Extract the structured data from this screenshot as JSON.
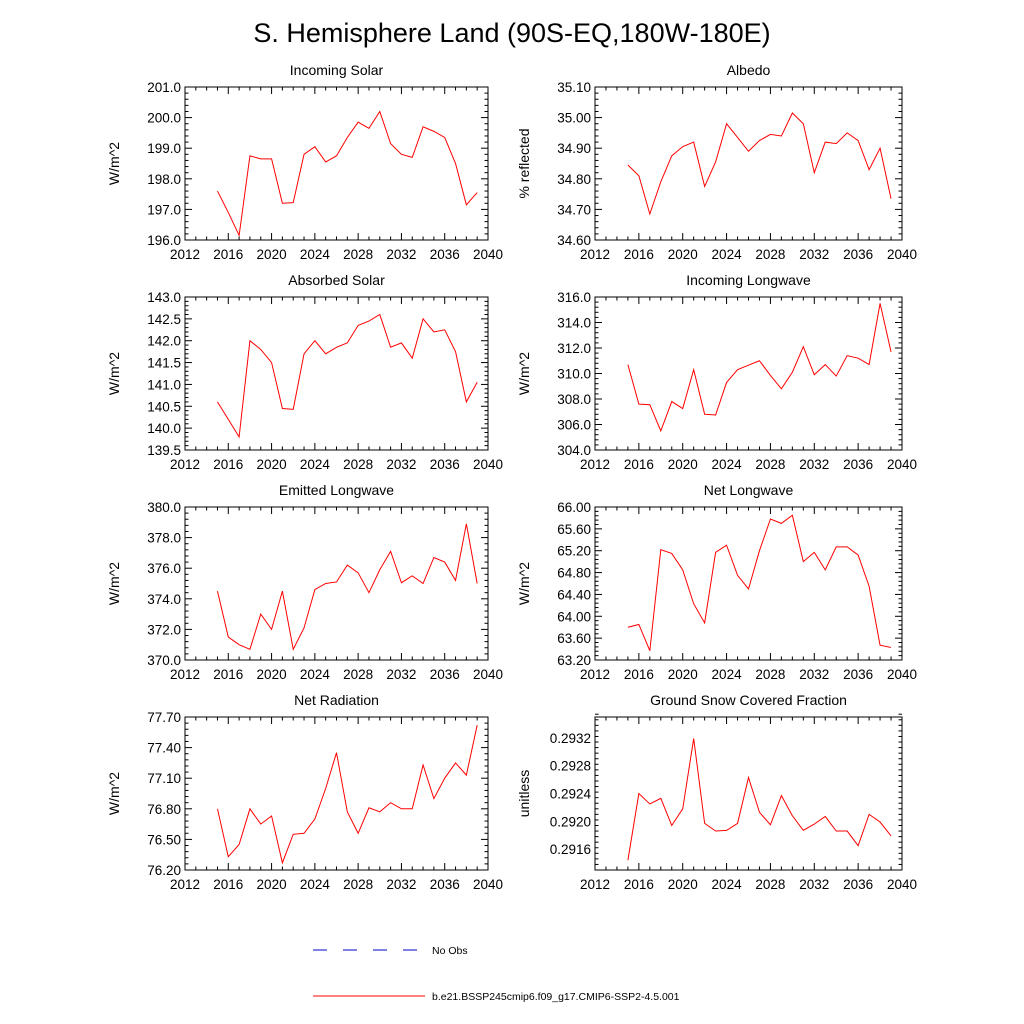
{
  "title": "S. Hemisphere Land (90S-EQ,180W-180E)",
  "colors": {
    "model_line": "#ff0000",
    "obs_line": "#0000cd"
  },
  "legend": {
    "obs_label": "No Obs",
    "model_label": "b.e21.BSSP245cmip6.f09_g17.CMIP6-SSP2-4.5.001"
  },
  "chart_data": [
    {
      "type": "line",
      "title": "Incoming Solar",
      "ylabel": "W/m^2",
      "xlim": [
        2012,
        2040
      ],
      "xticks": [
        2012,
        2016,
        2020,
        2024,
        2028,
        2032,
        2036,
        2040
      ],
      "ylim": [
        196.0,
        201.0
      ],
      "yticks": [
        "196.0",
        "197.0",
        "198.0",
        "199.0",
        "200.0",
        "201.0"
      ],
      "x": [
        2015,
        2016,
        2017,
        2018,
        2019,
        2020,
        2021,
        2022,
        2023,
        2024,
        2025,
        2026,
        2027,
        2028,
        2029,
        2030,
        2031,
        2032,
        2033,
        2034,
        2035,
        2036,
        2037,
        2038,
        2039
      ],
      "series": [
        {
          "name": "b.e21.BSSP245cmip6.f09_g17.CMIP6-SSP2-4.5.001",
          "values": [
            197.6,
            196.9,
            196.15,
            198.75,
            198.65,
            198.65,
            197.2,
            197.22,
            198.8,
            199.05,
            198.55,
            198.75,
            199.35,
            199.85,
            199.65,
            200.2,
            199.15,
            198.8,
            198.7,
            199.7,
            199.55,
            199.35,
            198.5,
            197.15,
            197.55
          ]
        }
      ]
    },
    {
      "type": "line",
      "title": "Albedo",
      "ylabel": "% reflected",
      "xlim": [
        2012,
        2040
      ],
      "xticks": [
        2012,
        2016,
        2020,
        2024,
        2028,
        2032,
        2036,
        2040
      ],
      "ylim": [
        34.6,
        35.1
      ],
      "yticks": [
        "34.60",
        "34.70",
        "34.80",
        "34.90",
        "35.00",
        "35.10"
      ],
      "x": [
        2015,
        2016,
        2017,
        2018,
        2019,
        2020,
        2021,
        2022,
        2023,
        2024,
        2025,
        2026,
        2027,
        2028,
        2029,
        2030,
        2031,
        2032,
        2033,
        2034,
        2035,
        2036,
        2037,
        2038,
        2039
      ],
      "series": [
        {
          "name": "b.e21.BSSP245cmip6.f09_g17.CMIP6-SSP2-4.5.001",
          "values": [
            34.845,
            34.81,
            34.685,
            34.79,
            34.875,
            34.905,
            34.92,
            34.775,
            34.855,
            34.98,
            34.935,
            34.89,
            34.925,
            34.945,
            34.94,
            35.015,
            34.98,
            34.82,
            34.92,
            34.915,
            34.95,
            34.925,
            34.83,
            34.9,
            34.735
          ]
        }
      ]
    },
    {
      "type": "line",
      "title": "Absorbed Solar",
      "ylabel": "W/m^2",
      "xlim": [
        2012,
        2040
      ],
      "xticks": [
        2012,
        2016,
        2020,
        2024,
        2028,
        2032,
        2036,
        2040
      ],
      "ylim": [
        139.5,
        143.0
      ],
      "yticks": [
        "139.5",
        "140.0",
        "140.5",
        "141.0",
        "141.5",
        "142.0",
        "142.5",
        "143.0"
      ],
      "x": [
        2015,
        2016,
        2017,
        2018,
        2019,
        2020,
        2021,
        2022,
        2023,
        2024,
        2025,
        2026,
        2027,
        2028,
        2029,
        2030,
        2031,
        2032,
        2033,
        2034,
        2035,
        2036,
        2037,
        2038,
        2039
      ],
      "series": [
        {
          "name": "b.e21.BSSP245cmip6.f09_g17.CMIP6-SSP2-4.5.001",
          "values": [
            140.6,
            140.2,
            139.8,
            142.0,
            141.8,
            141.5,
            140.45,
            140.43,
            141.7,
            142.0,
            141.7,
            141.85,
            141.95,
            142.35,
            142.45,
            142.6,
            141.85,
            141.95,
            141.6,
            142.5,
            142.2,
            142.25,
            141.75,
            140.6,
            141.05
          ]
        }
      ]
    },
    {
      "type": "line",
      "title": "Incoming Longwave",
      "ylabel": "W/m^2",
      "xlim": [
        2012,
        2040
      ],
      "xticks": [
        2012,
        2016,
        2020,
        2024,
        2028,
        2032,
        2036,
        2040
      ],
      "ylim": [
        304.0,
        316.0
      ],
      "yticks": [
        "304.0",
        "306.0",
        "308.0",
        "310.0",
        "312.0",
        "314.0",
        "316.0"
      ],
      "x": [
        2015,
        2016,
        2017,
        2018,
        2019,
        2020,
        2021,
        2022,
        2023,
        2024,
        2025,
        2026,
        2027,
        2028,
        2029,
        2030,
        2031,
        2032,
        2033,
        2034,
        2035,
        2036,
        2037,
        2038,
        2039
      ],
      "series": [
        {
          "name": "b.e21.BSSP245cmip6.f09_g17.CMIP6-SSP2-4.5.001",
          "values": [
            310.7,
            307.6,
            307.55,
            305.5,
            307.8,
            307.25,
            310.3,
            306.8,
            306.75,
            309.3,
            310.3,
            310.65,
            311.0,
            309.85,
            308.8,
            310.1,
            312.1,
            309.9,
            310.7,
            309.8,
            311.4,
            311.2,
            310.7,
            315.5,
            311.7
          ]
        }
      ]
    },
    {
      "type": "line",
      "title": "Emitted Longwave",
      "ylabel": "W/m^2",
      "xlim": [
        2012,
        2040
      ],
      "xticks": [
        2012,
        2016,
        2020,
        2024,
        2028,
        2032,
        2036,
        2040
      ],
      "ylim": [
        370.0,
        380.0
      ],
      "yticks": [
        "370.0",
        "372.0",
        "374.0",
        "376.0",
        "378.0",
        "380.0"
      ],
      "x": [
        2015,
        2016,
        2017,
        2018,
        2019,
        2020,
        2021,
        2022,
        2023,
        2024,
        2025,
        2026,
        2027,
        2028,
        2029,
        2030,
        2031,
        2032,
        2033,
        2034,
        2035,
        2036,
        2037,
        2038,
        2039
      ],
      "series": [
        {
          "name": "b.e21.BSSP245cmip6.f09_g17.CMIP6-SSP2-4.5.001",
          "values": [
            374.5,
            371.5,
            371.0,
            370.7,
            373.0,
            372.0,
            374.5,
            370.7,
            372.1,
            374.6,
            375.0,
            375.1,
            376.2,
            375.7,
            374.4,
            375.9,
            377.1,
            375.05,
            375.5,
            375.0,
            376.7,
            376.4,
            375.2,
            378.9,
            375.0
          ]
        }
      ]
    },
    {
      "type": "line",
      "title": "Net Longwave",
      "ylabel": "W/m^2",
      "xlim": [
        2012,
        2040
      ],
      "xticks": [
        2012,
        2016,
        2020,
        2024,
        2028,
        2032,
        2036,
        2040
      ],
      "ylim": [
        63.2,
        66.0
      ],
      "yticks": [
        "63.20",
        "63.60",
        "64.00",
        "64.40",
        "64.80",
        "65.20",
        "65.60",
        "66.00"
      ],
      "x": [
        2015,
        2016,
        2017,
        2018,
        2019,
        2020,
        2021,
        2022,
        2023,
        2024,
        2025,
        2026,
        2027,
        2028,
        2029,
        2030,
        2031,
        2032,
        2033,
        2034,
        2035,
        2036,
        2037,
        2038,
        2039
      ],
      "series": [
        {
          "name": "b.e21.BSSP245cmip6.f09_g17.CMIP6-SSP2-4.5.001",
          "values": [
            63.8,
            63.85,
            63.37,
            65.22,
            65.15,
            64.85,
            64.23,
            63.88,
            65.17,
            65.3,
            64.75,
            64.5,
            65.2,
            65.78,
            65.7,
            65.85,
            65.0,
            65.17,
            64.85,
            65.27,
            65.27,
            65.12,
            64.55,
            63.47,
            63.43
          ]
        }
      ]
    },
    {
      "type": "line",
      "title": "Net Radiation",
      "ylabel": "W/m^2",
      "xlim": [
        2012,
        2040
      ],
      "xticks": [
        2012,
        2016,
        2020,
        2024,
        2028,
        2032,
        2036,
        2040
      ],
      "ylim": [
        76.2,
        77.7
      ],
      "yticks": [
        "76.20",
        "76.50",
        "76.80",
        "77.10",
        "77.40",
        "77.70"
      ],
      "x": [
        2015,
        2016,
        2017,
        2018,
        2019,
        2020,
        2021,
        2022,
        2023,
        2024,
        2025,
        2026,
        2027,
        2028,
        2029,
        2030,
        2031,
        2032,
        2033,
        2034,
        2035,
        2036,
        2037,
        2038,
        2039
      ],
      "series": [
        {
          "name": "b.e21.BSSP245cmip6.f09_g17.CMIP6-SSP2-4.5.001",
          "values": [
            76.8,
            76.33,
            76.45,
            76.8,
            76.65,
            76.73,
            76.27,
            76.55,
            76.56,
            76.7,
            77.0,
            77.35,
            76.77,
            76.56,
            76.81,
            76.77,
            76.86,
            76.8,
            76.8,
            77.23,
            76.9,
            77.1,
            77.25,
            77.13,
            77.62
          ]
        }
      ]
    },
    {
      "type": "line",
      "title": "Ground Snow Covered Fraction",
      "ylabel": "unitless",
      "xlim": [
        2012,
        2040
      ],
      "xticks": [
        2012,
        2016,
        2020,
        2024,
        2028,
        2032,
        2036,
        2040
      ],
      "ylim": [
        0.2913,
        0.2935
      ],
      "yticks": [
        "0.2916",
        "0.2920",
        "0.2924",
        "0.2928",
        "0.2932"
      ],
      "x": [
        2015,
        2016,
        2017,
        2018,
        2019,
        2020,
        2021,
        2022,
        2023,
        2024,
        2025,
        2026,
        2027,
        2028,
        2029,
        2030,
        2031,
        2032,
        2033,
        2034,
        2035,
        2036,
        2037,
        2038,
        2039
      ],
      "series": [
        {
          "name": "b.e21.BSSP245cmip6.f09_g17.CMIP6-SSP2-4.5.001",
          "values": [
            0.29144,
            0.2924,
            0.29225,
            0.29233,
            0.29194,
            0.29218,
            0.29319,
            0.29197,
            0.29186,
            0.29187,
            0.29197,
            0.29263,
            0.29213,
            0.29195,
            0.29237,
            0.29208,
            0.29187,
            0.29196,
            0.29207,
            0.29186,
            0.29186,
            0.29165,
            0.2921,
            0.29199,
            0.29179
          ]
        }
      ]
    }
  ]
}
